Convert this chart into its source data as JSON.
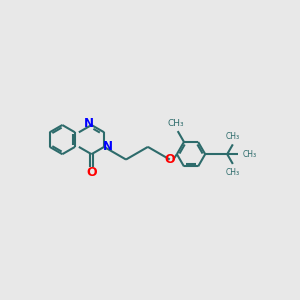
{
  "bg_color": "#e8e8e8",
  "bond_color": "#2d6b6b",
  "nitrogen_color": "#0000ff",
  "oxygen_color": "#ff0000",
  "line_width": 1.5,
  "font_size": 8.5,
  "fig_size": [
    3.0,
    3.0
  ],
  "dpi": 100,
  "xlim": [
    0,
    10
  ],
  "ylim": [
    0,
    10
  ]
}
